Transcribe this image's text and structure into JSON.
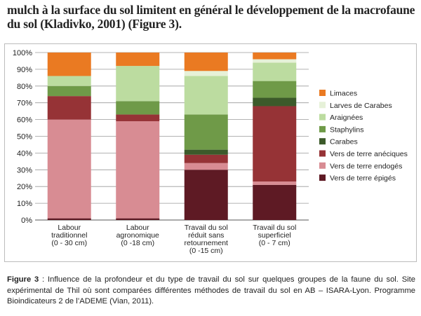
{
  "intro_text": "mulch à la surface du sol limitent en général le développement de la macrofaune du sol (Kladivko, 2001) (Figure 3).",
  "caption": {
    "label": "Figure 3",
    "text": " : Influence de la profondeur et du type de travail du sol sur quelques groupes de la faune du sol. Site expérimental de Thil où sont comparées différentes méthodes de travail du sol en AB – ISARA-Lyon. Programme Bioindicateurs 2 de l’ADEME (Vian, 2011)."
  },
  "chart_data": {
    "type": "bar",
    "stacked": true,
    "ylim": [
      0,
      100
    ],
    "yticks": [
      "0%",
      "10%",
      "20%",
      "30%",
      "40%",
      "50%",
      "60%",
      "70%",
      "80%",
      "90%",
      "100%"
    ],
    "categories": [
      [
        "Labour",
        "traditionnel",
        "(0 - 30 cm)"
      ],
      [
        "Labour",
        "agronomique",
        "(0 -18 cm)"
      ],
      [
        "Travail du sol",
        "réduit sans",
        "retournement",
        "(0 -15 cm)"
      ],
      [
        "Travail du sol",
        "superficiel",
        "(0 - 7 cm)"
      ]
    ],
    "series": [
      {
        "name": "Vers de terre épigés",
        "color": "#5e1a24",
        "values": [
          1,
          1,
          30,
          21
        ]
      },
      {
        "name": "Vers de terre endogés",
        "color": "#d88c93",
        "values": [
          59,
          58,
          4,
          2
        ]
      },
      {
        "name": "Vers de terre anéciques",
        "color": "#963336",
        "values": [
          14,
          4,
          5,
          45
        ]
      },
      {
        "name": "Carabes",
        "color": "#3c5a2a",
        "values": [
          0,
          0,
          3,
          5
        ]
      },
      {
        "name": "Staphylins",
        "color": "#6f9a48",
        "values": [
          6,
          8,
          21,
          10
        ]
      },
      {
        "name": "Araignées",
        "color": "#bcdca0",
        "values": [
          6,
          21,
          23,
          11
        ]
      },
      {
        "name": "Larves de Carabes",
        "color": "#e6f1d8",
        "values": [
          0,
          0,
          3,
          2
        ]
      },
      {
        "name": "Limaces",
        "color": "#ea7a22",
        "values": [
          14,
          8,
          11,
          4
        ]
      }
    ],
    "legend_order": [
      "Limaces",
      "Larves de Carabes",
      "Araignées",
      "Staphylins",
      "Carabes",
      "Vers de terre anéciques",
      "Vers de terre endogés",
      "Vers de terre épigés"
    ],
    "legend_position": "right"
  }
}
